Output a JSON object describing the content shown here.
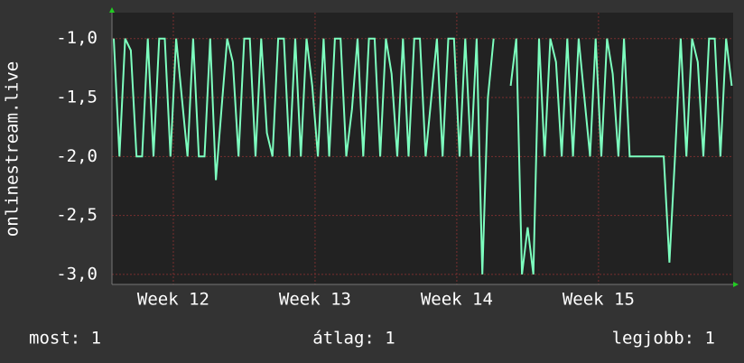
{
  "chart_data": {
    "type": "line",
    "y_label": "onlinestream.live",
    "x": [
      11.58,
      11.62,
      11.66,
      11.7,
      11.74,
      11.78,
      11.82,
      11.86,
      11.9,
      11.94,
      11.98,
      12.02,
      12.06,
      12.1,
      12.14,
      12.18,
      12.22,
      12.26,
      12.3,
      12.34,
      12.38,
      12.42,
      12.46,
      12.5,
      12.54,
      12.58,
      12.62,
      12.66,
      12.7,
      12.74,
      12.78,
      12.82,
      12.86,
      12.9,
      12.94,
      12.98,
      13.02,
      13.06,
      13.1,
      13.14,
      13.18,
      13.22,
      13.26,
      13.3,
      13.34,
      13.38,
      13.42,
      13.46,
      13.5,
      13.54,
      13.58,
      13.62,
      13.66,
      13.7,
      13.74,
      13.78,
      13.82,
      13.86,
      13.9,
      13.94,
      13.98,
      14.02,
      14.06,
      14.1,
      14.14,
      14.18,
      14.22,
      14.26,
      14.3,
      14.34,
      14.38,
      14.42,
      14.46,
      14.5,
      14.54,
      14.58,
      14.62,
      14.66,
      14.7,
      14.74,
      14.78,
      14.82,
      14.86,
      14.9,
      14.94,
      14.98,
      15.02,
      15.06,
      15.1,
      15.14,
      15.18,
      15.22,
      15.26,
      15.3,
      15.34,
      15.38,
      15.42,
      15.46,
      15.5,
      15.54,
      15.58,
      15.62,
      15.66,
      15.7,
      15.74,
      15.78,
      15.82,
      15.86,
      15.9,
      15.94
    ],
    "values": [
      -1,
      -2,
      -1,
      -1.1,
      -2,
      -2,
      -1,
      -2,
      -1,
      -1,
      -2,
      -1,
      -1.5,
      -2,
      -1,
      -2,
      -2,
      -1,
      -2.2,
      -1.6,
      -1,
      -1.2,
      -2,
      -1,
      -1,
      -2,
      -1,
      -1.8,
      -2,
      -1,
      -1,
      -2,
      -1,
      -2,
      -1,
      -1.4,
      -2,
      -1,
      -2,
      -1,
      -1,
      -2,
      -1.6,
      -1,
      -2,
      -1,
      -1,
      -2,
      -1,
      -1.3,
      -2,
      -1,
      -2,
      -1,
      -1,
      -2,
      -1.5,
      -1,
      -2,
      -1,
      -1,
      -2,
      -1,
      -2,
      -1,
      -3,
      -1.5,
      -1,
      null,
      null,
      -1.4,
      -1,
      -3,
      -2.6,
      -3,
      -1,
      -2,
      -1,
      -1.2,
      -2,
      -1,
      -2,
      -1,
      -1.5,
      -2,
      -1,
      -2,
      -1,
      -1.3,
      -2,
      -1,
      -2,
      -2,
      -2,
      -2,
      -2,
      -2,
      -2,
      -2.9,
      -2,
      -1,
      -2,
      -1,
      -1.2,
      -2,
      -1,
      -1,
      -2,
      -1,
      -1.4
    ],
    "color": "#7dffbf",
    "xlim": [
      11.567,
      15.95
    ],
    "ylim": [
      -3.085,
      -0.78
    ],
    "xticks": [
      {
        "value": 12,
        "label": "Week 12"
      },
      {
        "value": 13,
        "label": "Week 13"
      },
      {
        "value": 14,
        "label": "Week 14"
      },
      {
        "value": 15,
        "label": "Week 15"
      }
    ],
    "yticks": [
      {
        "value": -1,
        "label": "-1,0"
      },
      {
        "value": -1.5,
        "label": "-1,5"
      },
      {
        "value": -2,
        "label": "-2,0"
      },
      {
        "value": -2.5,
        "label": "-2,5"
      },
      {
        "value": -3,
        "label": "-3,0"
      }
    ],
    "grid": true,
    "stats": [
      "most: 1",
      "átlag: 1",
      "legjobb: 1"
    ]
  }
}
